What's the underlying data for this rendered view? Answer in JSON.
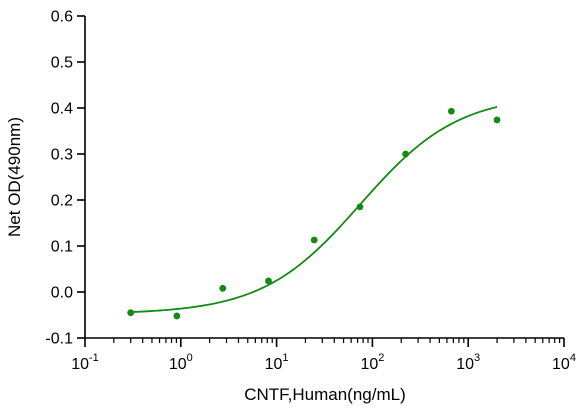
{
  "chart_data": {
    "type": "scatter",
    "x_scale": "log",
    "xlabel": "CNTF,Human(ng/mL)",
    "ylabel": "Net OD(490nm)",
    "xlim": [
      0.1,
      10000
    ],
    "ylim": [
      -0.1,
      0.6
    ],
    "x_ticks": [
      {
        "value": 0.1,
        "base": "10",
        "exp": "-1"
      },
      {
        "value": 1,
        "base": "10",
        "exp": "0"
      },
      {
        "value": 10,
        "base": "10",
        "exp": "1"
      },
      {
        "value": 100,
        "base": "10",
        "exp": "2"
      },
      {
        "value": 1000,
        "base": "10",
        "exp": "3"
      },
      {
        "value": 10000,
        "base": "10",
        "exp": "4"
      }
    ],
    "y_ticks": [
      {
        "value": -0.1,
        "label": "-0.1"
      },
      {
        "value": 0.0,
        "label": "0.0"
      },
      {
        "value": 0.1,
        "label": "0.1"
      },
      {
        "value": 0.2,
        "label": "0.2"
      },
      {
        "value": 0.3,
        "label": "0.3"
      },
      {
        "value": 0.4,
        "label": "0.4"
      },
      {
        "value": 0.5,
        "label": "0.5"
      },
      {
        "value": 0.6,
        "label": "0.6"
      }
    ],
    "series": [
      {
        "color": "#138a13",
        "points": [
          {
            "x": 0.3,
            "y": -0.045
          },
          {
            "x": 0.91,
            "y": -0.052
          },
          {
            "x": 2.74,
            "y": 0.008
          },
          {
            "x": 8.23,
            "y": 0.024
          },
          {
            "x": 24.7,
            "y": 0.113
          },
          {
            "x": 74.1,
            "y": 0.185
          },
          {
            "x": 222,
            "y": 0.3
          },
          {
            "x": 667,
            "y": 0.393
          },
          {
            "x": 2000,
            "y": 0.374
          }
        ],
        "fit_curve": {
          "model": "4PL",
          "bottom": -0.048,
          "top": 0.43,
          "ec50": 75,
          "hill": 0.85,
          "x_range": [
            0.3,
            2000
          ]
        }
      }
    ],
    "grid": false,
    "legend": "none"
  }
}
